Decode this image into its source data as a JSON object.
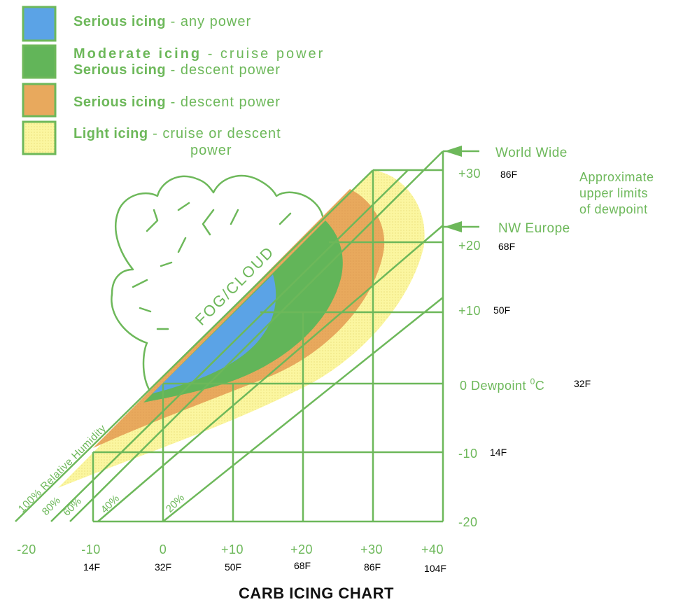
{
  "title": "CARB ICING CHART",
  "legend": [
    {
      "color": "#5ba3e6",
      "bold": "Serious icing",
      "rest": " - any power"
    },
    {
      "color": "#62b559",
      "bold": "Moderate icing",
      "rest": " - cruise power",
      "bold2": "Serious icing",
      "rest2": " - descent power"
    },
    {
      "color": "#e8a95d",
      "bold": "Serious icing",
      "rest": " - descent power"
    },
    {
      "color": "#fbf6a0",
      "bold": "Light icing",
      "rest": " - cruise or descent",
      "rest_line2": "power"
    }
  ],
  "y_axis": {
    "ticks_c": [
      "+30",
      "+20",
      "+10",
      "0 Dewpoint ⁰C",
      "-10",
      "-20"
    ],
    "ticks_f": [
      "86F",
      "68F",
      "50F",
      "32F",
      "14F"
    ],
    "sup": "0"
  },
  "x_axis": {
    "ticks_c": [
      "-20",
      "-10",
      "0",
      "+10",
      "+20",
      "+30",
      "+40"
    ],
    "ticks_f": [
      "14F",
      "32F",
      "50F",
      "68F",
      "86F",
      "104F"
    ]
  },
  "limits": {
    "world_wide": "World Wide",
    "nw_europe": "NW Europe",
    "approx": [
      "Approximate",
      "upper limits",
      "of dewpoint"
    ]
  },
  "humidity_labels": [
    "100% Relative Humidity",
    "80%",
    "60%",
    "40%",
    "20%"
  ],
  "fog_label": "FOG/CLOUD",
  "colors": {
    "green_line": "#6db85a",
    "blue": "#5ba3e6",
    "dark_green": "#62b559",
    "orange": "#e8a95d",
    "yellow": "#fbf6a0"
  }
}
